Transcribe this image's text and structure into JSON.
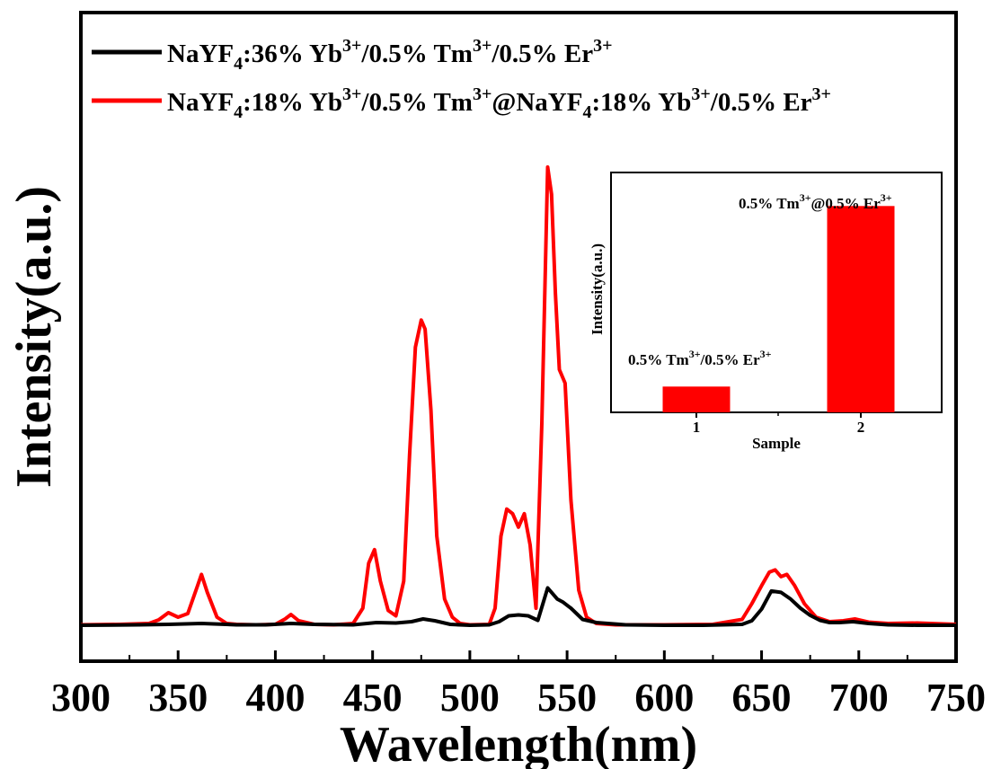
{
  "chart_data": [
    {
      "type": "line",
      "title": "",
      "xlabel": "Wavelength(nm)",
      "ylabel": "Intensity(a.u.)",
      "xlim": [
        300,
        750
      ],
      "ylim": [
        0,
        105
      ],
      "x_ticks": [
        "300",
        "350",
        "400",
        "450",
        "500",
        "550",
        "600",
        "650",
        "700",
        "750"
      ],
      "y_ticks_shown": false,
      "grid": false,
      "legend_placement": "top-left",
      "legend": [
        {
          "base": "NaYF",
          "sub": "4",
          "text": ":36% Yb",
          "sup": "3+",
          "text2": "/0.5% Tm",
          "sup2": "3+",
          "text3": "/0.5% Er",
          "sup3": "3+"
        },
        {
          "base": "NaYF",
          "sub": "4",
          "text": ":18% Yb",
          "sup": "3+",
          "text2": "/0.5% Tm",
          "sup2": "3+",
          "text3": "@NaYF",
          "sub3": "4",
          "text4": ":18% Yb",
          "sup4": "3+",
          "text5": "/0.5% Er",
          "sup5": "3+"
        }
      ],
      "series": [
        {
          "name": "NaYF4:36% Yb3+/0.5% Tm3+/0.5% Er3+",
          "color": "#000000",
          "x": [
            300,
            330,
            345,
            362,
            380,
            395,
            408,
            420,
            440,
            452,
            462,
            470,
            476,
            482,
            490,
            500,
            510,
            515,
            520,
            525,
            530,
            535,
            540,
            545,
            548,
            552,
            558,
            565,
            580,
            600,
            620,
            640,
            645,
            650,
            655,
            660,
            665,
            670,
            675,
            680,
            685,
            690,
            697,
            705,
            715,
            730,
            750
          ],
          "y": [
            0.2,
            0.3,
            0.4,
            0.6,
            0.3,
            0.3,
            0.6,
            0.4,
            0.3,
            0.8,
            0.7,
            1.0,
            1.6,
            1.2,
            0.4,
            0.2,
            0.3,
            1.0,
            2.3,
            2.5,
            2.3,
            1.3,
            8.5,
            6.0,
            5.3,
            4.0,
            1.5,
            0.8,
            0.3,
            0.2,
            0.2,
            0.4,
            1.2,
            3.8,
            7.8,
            7.5,
            6.0,
            4.0,
            2.4,
            1.3,
            0.8,
            0.8,
            1.0,
            0.6,
            0.3,
            0.2,
            0.2
          ]
        },
        {
          "name": "NaYF4:18% Yb3+/0.5% Tm3+@NaYF4:18% Yb3+/0.5% Er3+",
          "color": "#ff0000",
          "x": [
            300,
            320,
            335,
            340,
            345,
            350,
            355,
            360,
            362,
            365,
            370,
            375,
            380,
            390,
            400,
            405,
            408,
            412,
            420,
            430,
            440,
            445,
            448,
            451,
            454,
            458,
            462,
            466,
            469,
            472,
            475,
            477,
            480,
            483,
            487,
            491,
            495,
            500,
            510,
            513,
            516,
            519,
            522,
            525,
            528,
            531,
            534,
            537,
            540,
            542,
            544,
            546,
            549,
            552,
            556,
            560,
            565,
            575,
            600,
            625,
            640,
            645,
            650,
            654,
            657,
            660,
            663,
            667,
            672,
            678,
            685,
            692,
            698,
            705,
            715,
            730,
            750
          ],
          "y": [
            0.3,
            0.4,
            0.6,
            1.4,
            3.0,
            2.0,
            2.8,
            9.0,
            11.5,
            7.5,
            2.0,
            0.6,
            0.4,
            0.3,
            0.4,
            1.6,
            2.6,
            1.2,
            0.4,
            0.3,
            0.6,
            4.0,
            14.0,
            17.0,
            10.0,
            3.5,
            2.3,
            10.0,
            38.0,
            62.0,
            68.0,
            66.0,
            48.0,
            20.0,
            6.0,
            2.0,
            0.6,
            0.3,
            0.4,
            4.0,
            20.0,
            26.0,
            25.0,
            22.0,
            25.0,
            18.0,
            4.0,
            45.0,
            102.0,
            96.0,
            74.0,
            57.0,
            54.0,
            28.0,
            8.0,
            2.0,
            0.6,
            0.3,
            0.3,
            0.4,
            1.5,
            5.0,
            9.0,
            12.0,
            12.5,
            11.0,
            11.5,
            9.0,
            5.0,
            2.0,
            1.0,
            1.2,
            1.6,
            0.9,
            0.6,
            0.7,
            0.4
          ]
        }
      ]
    },
    {
      "type": "bar",
      "title": "",
      "xlabel": "Sample",
      "ylabel": "Intensity(a.u.)",
      "categories": [
        "1",
        "2"
      ],
      "values": [
        1,
        8
      ],
      "ylim": [
        0,
        9.3
      ],
      "color": "#ff0000",
      "data_labels": [
        {
          "text": "0.5% Tm",
          "sup": "3+",
          "text2": "/0.5% Er",
          "sup2": "3+"
        },
        {
          "text": "0.5% Tm",
          "sup": "3+",
          "text2": "@0.5% Er",
          "sup2": "3+"
        }
      ]
    }
  ]
}
